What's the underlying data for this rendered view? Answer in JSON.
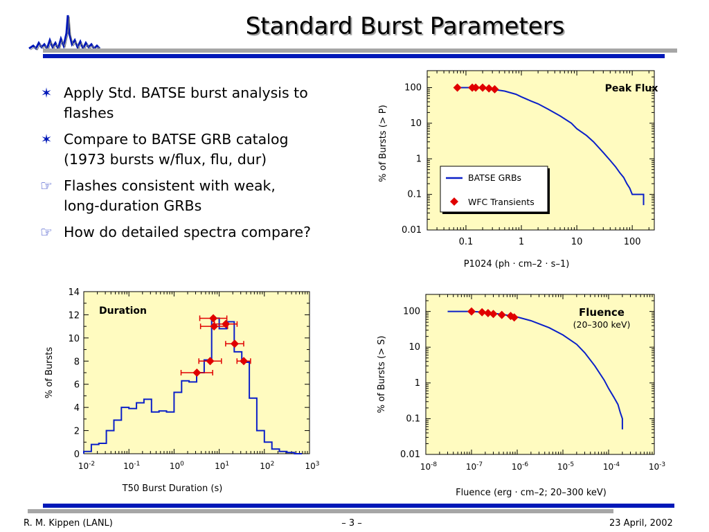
{
  "slide": {
    "title": "Standard Burst Parameters",
    "bullets": [
      {
        "marker": "star-bullet-icon",
        "text_lines": [
          "Apply Std. BATSE burst analysis to",
          "flashes"
        ]
      },
      {
        "marker": "star-bullet-icon",
        "text_lines": [
          "Compare to BATSE GRB catalog",
          "(1973 bursts w/flux, flu, dur)"
        ]
      },
      {
        "marker": "pointing-hand-icon",
        "text_lines": [
          "Flashes consistent with weak,",
          "long-duration GRBs"
        ]
      },
      {
        "marker": "pointing-hand-icon",
        "text_lines": [
          "How do detailed spectra compare?"
        ]
      }
    ],
    "footer": {
      "left": "R. M. Kippen (LANL)",
      "center": "– 3 –",
      "right": "23 April, 2002"
    }
  },
  "colors": {
    "accent": "#0018b8",
    "rule_gray": "#a6a6a6",
    "plot_bg": "#fffbc0",
    "series_line": "#0a1fc8",
    "marker": "#e00000"
  },
  "chart_data": [
    {
      "id": "peak-flux",
      "type": "line",
      "title": "Peak Flux",
      "xlabel": "P1024 (ph · cm–2 · s–1)",
      "ylabel": "% of Bursts (> P)",
      "x_scale": "log",
      "y_scale": "log",
      "xlim": [
        0.02,
        250
      ],
      "ylim": [
        0.01,
        300
      ],
      "xticks": [
        "0.1",
        "1",
        "10",
        "100"
      ],
      "yticks": [
        "0.01",
        "0.1",
        "1",
        "10",
        "100"
      ],
      "legend": {
        "position": "center-right",
        "entries": [
          "BATSE GRBs",
          "WFC Transients"
        ]
      },
      "series": [
        {
          "name": "BATSE GRBs",
          "style": "line",
          "x": [
            0.07,
            0.1,
            0.15,
            0.2,
            0.3,
            0.5,
            0.8,
            1.0,
            1.5,
            2,
            3,
            5,
            8,
            10,
            15,
            20,
            30,
            40,
            50,
            60,
            70,
            80,
            90,
            100,
            150,
            160,
            160
          ],
          "y": [
            100,
            100,
            100,
            100,
            90,
            80,
            65,
            55,
            42,
            35,
            25,
            16,
            10,
            7,
            4.5,
            3,
            1.5,
            0.9,
            0.6,
            0.4,
            0.3,
            0.2,
            0.15,
            0.1,
            0.1,
            0.1,
            0.05
          ]
        },
        {
          "name": "WFC Transients",
          "style": "marker",
          "x": [
            0.07,
            0.13,
            0.15,
            0.2,
            0.26,
            0.33
          ],
          "y": [
            100,
            100,
            100,
            100,
            95,
            90
          ]
        }
      ]
    },
    {
      "id": "duration",
      "type": "line",
      "title": "Duration",
      "xlabel": "T50 Burst Duration (s)",
      "ylabel": "% of Bursts",
      "x_scale": "log",
      "xlim": [
        0.01,
        1000
      ],
      "ylim": [
        0,
        14
      ],
      "xticks": [
        "10-2",
        "10-1",
        "100",
        "101",
        "102",
        "103"
      ],
      "yticks": [
        "0",
        "2",
        "4",
        "6",
        "8",
        "10",
        "12",
        "14"
      ],
      "series": [
        {
          "name": "BATSE GRBs",
          "style": "histogram",
          "bin_edges_log10": [
            -2.0,
            -1.833,
            -1.667,
            -1.5,
            -1.333,
            -1.167,
            -1.0,
            -0.833,
            -0.667,
            -0.5,
            -0.333,
            -0.167,
            0.0,
            0.167,
            0.333,
            0.5,
            0.667,
            0.833,
            1.0,
            1.167,
            1.333,
            1.5,
            1.667,
            1.833,
            2.0,
            2.167,
            2.333,
            2.5,
            2.667,
            2.833
          ],
          "values": [
            0.2,
            0.8,
            0.9,
            2.0,
            2.9,
            4.0,
            3.9,
            4.4,
            4.7,
            3.6,
            3.7,
            3.6,
            5.3,
            6.3,
            6.2,
            7.0,
            8.1,
            11.7,
            10.8,
            11.4,
            8.8,
            7.9,
            4.8,
            2.0,
            1.0,
            0.4,
            0.2,
            0.1,
            0.0
          ]
        },
        {
          "name": "WFC Transients",
          "style": "marker",
          "x": [
            3.2,
            6.3,
            7.4,
            7.7,
            14,
            22,
            35
          ],
          "y": [
            7.0,
            8.0,
            11.7,
            11.0,
            11.2,
            9.5,
            8.0
          ],
          "x_errors_log10": [
            0.35,
            0.25,
            0.3,
            0.3,
            0.25,
            0.2,
            0.15
          ]
        }
      ]
    },
    {
      "id": "fluence",
      "type": "line",
      "title": "Fluence",
      "subtitle": "(20–300 keV)",
      "xlabel": "Fluence (erg · cm–2; 20–300 keV)",
      "ylabel": "% of Bursts (> S)",
      "x_scale": "log",
      "y_scale": "log",
      "xlim": [
        1e-08,
        0.001
      ],
      "ylim": [
        0.01,
        300
      ],
      "xticks": [
        "10-8",
        "10-7",
        "10-6",
        "10-5",
        "10-4",
        "10-3"
      ],
      "yticks": [
        "0.01",
        "0.1",
        "1",
        "10",
        "100"
      ],
      "series": [
        {
          "name": "BATSE GRBs",
          "style": "line",
          "x": [
            3e-08,
            6e-08,
            1e-07,
            2e-07,
            5e-07,
            1e-06,
            2e-06,
            5e-06,
            1e-05,
            2e-05,
            3e-05,
            5e-05,
            8e-05,
            0.0001,
            0.00013,
            0.00016,
            0.00018,
            0.0002,
            0.0002
          ],
          "y": [
            100,
            100,
            100,
            95,
            82,
            70,
            55,
            35,
            22,
            12,
            7,
            3,
            1.2,
            0.7,
            0.4,
            0.25,
            0.15,
            0.1,
            0.05
          ]
        },
        {
          "name": "WFC Transients",
          "style": "marker",
          "x": [
            1e-07,
            1.7e-07,
            2.3e-07,
            3e-07,
            4.6e-07,
            7.2e-07,
            8.6e-07
          ],
          "y": [
            100,
            95,
            90,
            85,
            80,
            75,
            68
          ]
        }
      ]
    }
  ]
}
